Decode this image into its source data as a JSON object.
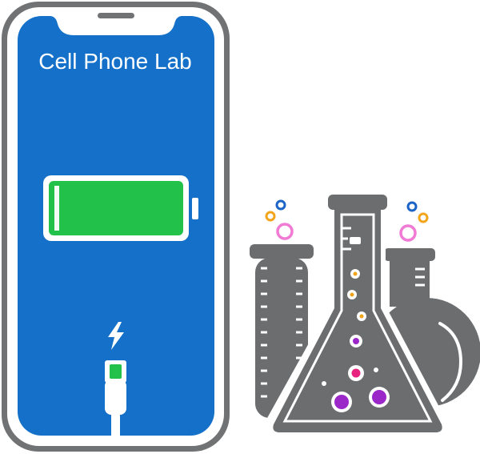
{
  "logo": {
    "title": "Cell Phone Lab",
    "colors": {
      "phone_frame": "#707273",
      "screen": "#1470c8",
      "battery_fill": "#22c24a",
      "glassware": "#6b6d6f",
      "bubble_pink": "#e8237f",
      "bubble_purple": "#9c27c9",
      "bubble_orange": "#f2a51b",
      "bubble_blue": "#1c63c8",
      "bubble_light_pink": "#f07ad4"
    },
    "icons": [
      "phone-icon",
      "battery-icon",
      "lightning-bolt-icon",
      "charging-cable-icon",
      "test-tube-icon",
      "erlenmeyer-flask-icon",
      "round-flask-icon"
    ]
  }
}
